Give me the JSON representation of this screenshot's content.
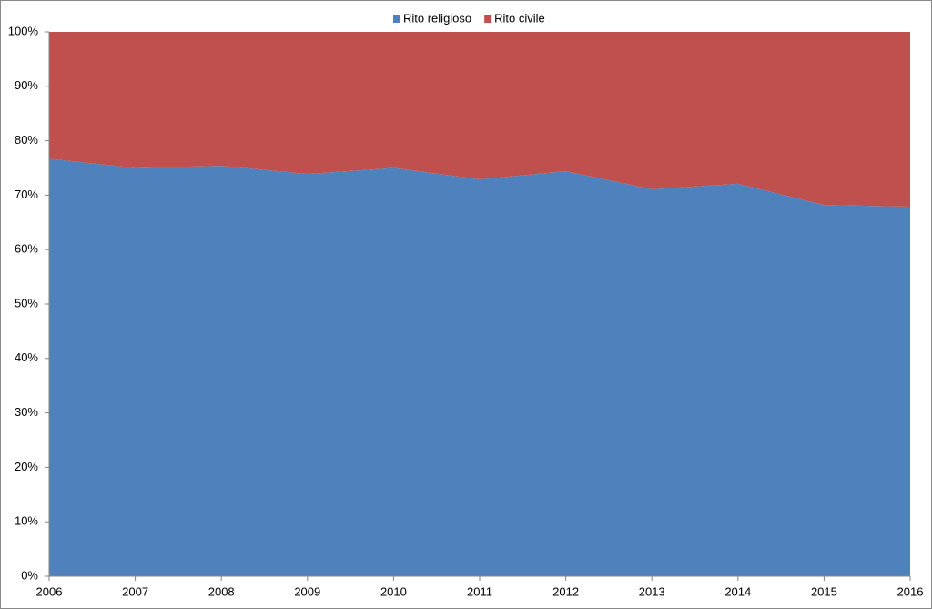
{
  "chart_data": {
    "type": "stacked_area_100",
    "categories": [
      "2006",
      "2007",
      "2008",
      "2009",
      "2010",
      "2011",
      "2012",
      "2013",
      "2014",
      "2015",
      "2016"
    ],
    "series": [
      {
        "name": "Rito religioso",
        "color": "#4f81bd",
        "values": [
          76.7,
          75.0,
          75.4,
          73.9,
          75.0,
          72.9,
          74.4,
          71.1,
          72.1,
          68.2,
          67.9
        ]
      },
      {
        "name": "Rito civile",
        "color": "#c0504d",
        "values": [
          23.3,
          25.0,
          24.6,
          26.1,
          25.0,
          27.1,
          25.6,
          28.9,
          27.9,
          31.8,
          32.1
        ]
      }
    ],
    "ylim": [
      0,
      100
    ],
    "yticks": [
      {
        "value": 0,
        "label": "0%"
      },
      {
        "value": 10,
        "label": "10%"
      },
      {
        "value": 20,
        "label": "20%"
      },
      {
        "value": 30,
        "label": "30%"
      },
      {
        "value": 40,
        "label": "40%"
      },
      {
        "value": 50,
        "label": "50%"
      },
      {
        "value": 60,
        "label": "60%"
      },
      {
        "value": 70,
        "label": "70%"
      },
      {
        "value": 80,
        "label": "80%"
      },
      {
        "value": 90,
        "label": "90%"
      },
      {
        "value": 100,
        "label": "100%"
      }
    ],
    "legend": "top",
    "grid": false
  }
}
